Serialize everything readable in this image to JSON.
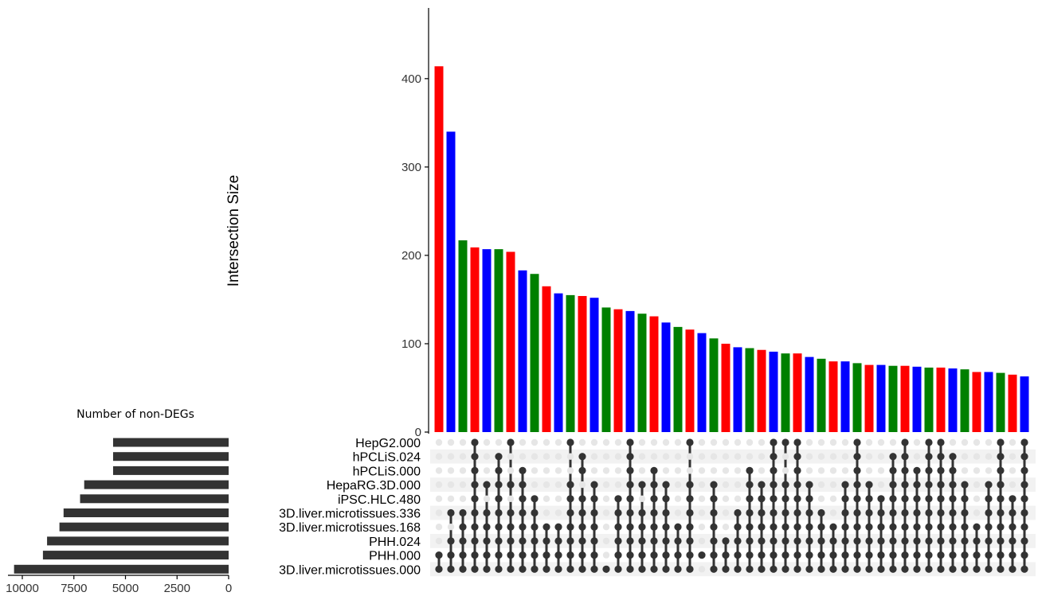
{
  "chart_data": {
    "type": "upset",
    "ylabel": "Intersection Size",
    "ylim": [
      0,
      480
    ],
    "y_ticks": [
      0,
      100,
      200,
      300,
      400
    ],
    "set_size_title": "Number of non-DEGs",
    "set_size_ticks": [
      10000,
      7500,
      5000,
      2500,
      0
    ],
    "set_size_lim": [
      0,
      10500
    ],
    "sets": [
      {
        "name": "HepG2.000",
        "size": 5600
      },
      {
        "name": "hPCLiS.024",
        "size": 5600
      },
      {
        "name": "hPCLiS.000",
        "size": 5600
      },
      {
        "name": "HepaRG.3D.000",
        "size": 7000
      },
      {
        "name": "iPSC.HLC.480",
        "size": 7200
      },
      {
        "name": "3D.liver.microtissues.336",
        "size": 8000
      },
      {
        "name": "3D.liver.microtissues.168",
        "size": 8200
      },
      {
        "name": "PHH.024",
        "size": 8800
      },
      {
        "name": "PHH.000",
        "size": 9000
      },
      {
        "name": "3D.liver.microtissues.000",
        "size": 10400
      }
    ],
    "colors": {
      "red": "#ff0000",
      "blue": "#0000ff",
      "green": "#008000",
      "dark": "#333333",
      "empty_dot": "#e6e6e6",
      "stripe": "#f2f2f2"
    },
    "intersections": [
      {
        "value": 414,
        "color": "red",
        "members": [
          8,
          9
        ]
      },
      {
        "value": 340,
        "color": "blue",
        "members": [
          5,
          7,
          8,
          9
        ]
      },
      {
        "value": 217,
        "color": "green",
        "members": [
          5,
          6,
          7,
          8,
          9
        ]
      },
      {
        "value": 209,
        "color": "red",
        "members": [
          0,
          1,
          2,
          3,
          4,
          5,
          6,
          7,
          8,
          9
        ]
      },
      {
        "value": 207,
        "color": "blue",
        "members": [
          3,
          5,
          6,
          7,
          8,
          9
        ]
      },
      {
        "value": 207,
        "color": "green",
        "members": [
          1,
          2,
          3,
          4,
          5,
          6,
          7,
          8,
          9
        ]
      },
      {
        "value": 204,
        "color": "red",
        "members": [
          0,
          3,
          5,
          6,
          7,
          8,
          9
        ]
      },
      {
        "value": 183,
        "color": "blue",
        "members": [
          2,
          3,
          4,
          5,
          6,
          7,
          8,
          9
        ]
      },
      {
        "value": 179,
        "color": "green",
        "members": [
          4,
          5,
          6,
          7,
          8,
          9
        ]
      },
      {
        "value": 165,
        "color": "red",
        "members": [
          6,
          7,
          8,
          9
        ]
      },
      {
        "value": 157,
        "color": "blue",
        "members": [
          6,
          7,
          8,
          9
        ]
      },
      {
        "value": 155,
        "color": "green",
        "members": [
          0,
          3,
          4,
          5,
          6,
          7,
          8,
          9
        ]
      },
      {
        "value": 154,
        "color": "red",
        "members": [
          1,
          2,
          4,
          5,
          6,
          7,
          8,
          9
        ]
      },
      {
        "value": 152,
        "color": "blue",
        "members": [
          3,
          4,
          5,
          6,
          7,
          8,
          9
        ]
      },
      {
        "value": 141,
        "color": "green",
        "members": [
          9
        ]
      },
      {
        "value": 139,
        "color": "red",
        "members": [
          4,
          5,
          6,
          7,
          8,
          9
        ]
      },
      {
        "value": 137,
        "color": "blue",
        "members": [
          0,
          1,
          2,
          3,
          4,
          5,
          6,
          7,
          8,
          9
        ]
      },
      {
        "value": 134,
        "color": "green",
        "members": [
          3,
          5,
          6,
          7,
          8,
          9
        ]
      },
      {
        "value": 131,
        "color": "red",
        "members": [
          2,
          3,
          4,
          5,
          6,
          7,
          8,
          9
        ]
      },
      {
        "value": 124,
        "color": "blue",
        "members": [
          3,
          4,
          5,
          6,
          7,
          8,
          9
        ]
      },
      {
        "value": 119,
        "color": "green",
        "members": [
          6,
          7,
          8,
          9
        ]
      },
      {
        "value": 116,
        "color": "red",
        "members": [
          0,
          3,
          4,
          5,
          6,
          7,
          8,
          9
        ]
      },
      {
        "value": 112,
        "color": "blue",
        "members": [
          8
        ]
      },
      {
        "value": 106,
        "color": "green",
        "members": [
          3,
          4,
          5,
          6,
          7,
          8,
          9
        ]
      },
      {
        "value": 100,
        "color": "red",
        "members": [
          7,
          8,
          9
        ]
      },
      {
        "value": 96,
        "color": "blue",
        "members": [
          5,
          6,
          7,
          8,
          9
        ]
      },
      {
        "value": 95,
        "color": "green",
        "members": [
          2,
          3,
          4,
          5,
          6,
          7,
          8,
          9
        ]
      },
      {
        "value": 93,
        "color": "red",
        "members": [
          3,
          4,
          5,
          6,
          7,
          8,
          9
        ]
      },
      {
        "value": 91,
        "color": "blue",
        "members": [
          0,
          1,
          2,
          3,
          4,
          5,
          6,
          7,
          8,
          9
        ]
      },
      {
        "value": 89,
        "color": "green",
        "members": [
          0,
          3,
          4,
          5,
          6,
          7,
          8,
          9
        ]
      },
      {
        "value": 89,
        "color": "red",
        "members": [
          0,
          1,
          2,
          3,
          4,
          5,
          6,
          7,
          8,
          9
        ]
      },
      {
        "value": 85,
        "color": "blue",
        "members": [
          3,
          4,
          5,
          6,
          7,
          8,
          9
        ]
      },
      {
        "value": 83,
        "color": "green",
        "members": [
          5,
          6,
          7,
          8,
          9
        ]
      },
      {
        "value": 80,
        "color": "red",
        "members": [
          6,
          7,
          8,
          9
        ]
      },
      {
        "value": 80,
        "color": "blue",
        "members": [
          3,
          4,
          5,
          6,
          7,
          8,
          9
        ]
      },
      {
        "value": 78,
        "color": "green",
        "members": [
          0,
          1,
          2,
          3,
          4,
          5,
          6,
          7,
          8,
          9
        ]
      },
      {
        "value": 76,
        "color": "red",
        "members": [
          3,
          4,
          5,
          6,
          7,
          8,
          9
        ]
      },
      {
        "value": 76,
        "color": "blue",
        "members": [
          4,
          5,
          6,
          7,
          8,
          9
        ]
      },
      {
        "value": 75,
        "color": "green",
        "members": [
          1,
          2,
          3,
          4,
          5,
          6,
          7,
          8,
          9
        ]
      },
      {
        "value": 75,
        "color": "red",
        "members": [
          0,
          1,
          2,
          3,
          4,
          5,
          6,
          7,
          8,
          9
        ]
      },
      {
        "value": 74,
        "color": "blue",
        "members": [
          2,
          3,
          4,
          5,
          6,
          7,
          8,
          9
        ]
      },
      {
        "value": 73,
        "color": "green",
        "members": [
          0,
          1,
          2,
          3,
          4,
          5,
          6,
          7,
          8,
          9
        ]
      },
      {
        "value": 73,
        "color": "red",
        "members": [
          0,
          1,
          2,
          3,
          4,
          5,
          6,
          7,
          8,
          9
        ]
      },
      {
        "value": 72,
        "color": "blue",
        "members": [
          1,
          2,
          3,
          4,
          5,
          6,
          7,
          8,
          9
        ]
      },
      {
        "value": 71,
        "color": "green",
        "members": [
          3,
          4,
          5,
          6,
          7,
          8,
          9
        ]
      },
      {
        "value": 68,
        "color": "red",
        "members": [
          6,
          7,
          8,
          9
        ]
      },
      {
        "value": 68,
        "color": "blue",
        "members": [
          3,
          4,
          5,
          6,
          7,
          8,
          9
        ]
      },
      {
        "value": 67,
        "color": "green",
        "members": [
          0,
          1,
          2,
          3,
          4,
          5,
          6,
          7,
          8,
          9
        ]
      },
      {
        "value": 65,
        "color": "red",
        "members": [
          4,
          5,
          6,
          7,
          8,
          9
        ]
      },
      {
        "value": 63,
        "color": "blue",
        "members": [
          0,
          1,
          2,
          3,
          4,
          5,
          6,
          7,
          8,
          9
        ]
      }
    ]
  }
}
